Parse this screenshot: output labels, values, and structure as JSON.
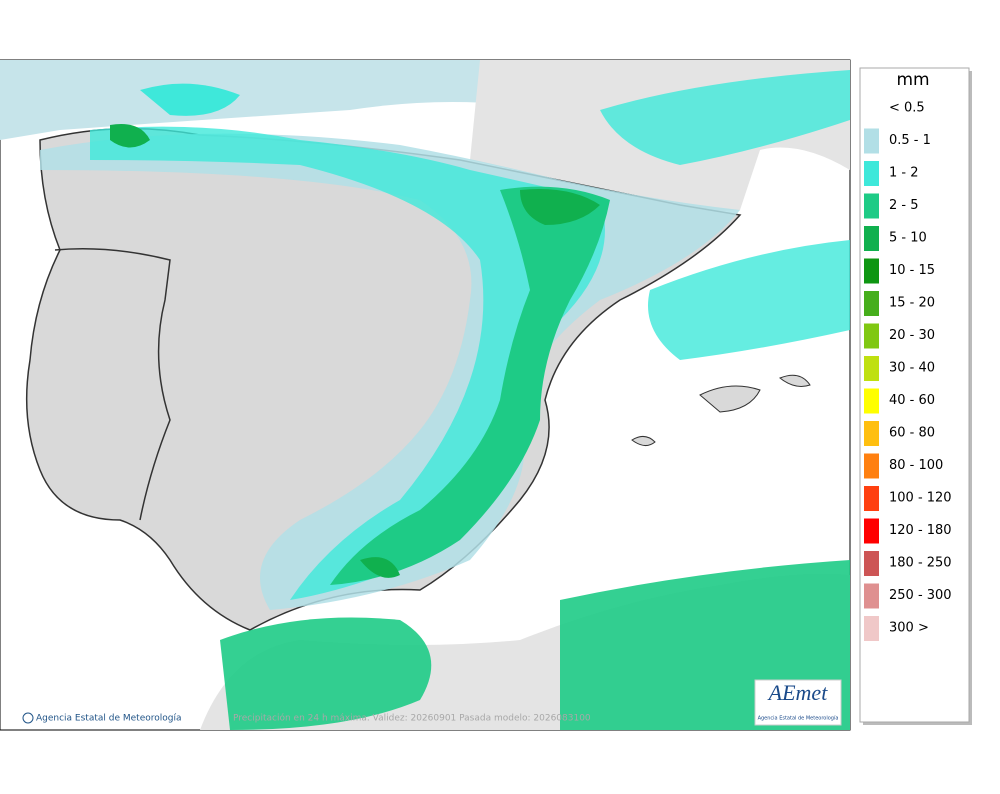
{
  "legend": {
    "title": "mm",
    "items": [
      {
        "label": "< 0.5",
        "color": "#ffffff"
      },
      {
        "label": "0.5 - 1",
        "color": "#b2dfe6"
      },
      {
        "label": "1 - 2",
        "color": "#3ee8da"
      },
      {
        "label": "2 - 5",
        "color": "#1ecb86"
      },
      {
        "label": "5 - 10",
        "color": "#10b04e"
      },
      {
        "label": "10 - 15",
        "color": "#0e9612"
      },
      {
        "label": "15 - 20",
        "color": "#46ae1c"
      },
      {
        "label": "20 - 30",
        "color": "#80c812"
      },
      {
        "label": "30 - 40",
        "color": "#bfe010"
      },
      {
        "label": "40 - 60",
        "color": "#ffff00"
      },
      {
        "label": "60 - 80",
        "color": "#ffbf10"
      },
      {
        "label": "80 - 100",
        "color": "#ff8010"
      },
      {
        "label": "100 - 120",
        "color": "#ff4010"
      },
      {
        "label": "120 - 180",
        "color": "#ff0000"
      },
      {
        "label": "180 - 250",
        "color": "#cd5555"
      },
      {
        "label": "250 - 300",
        "color": "#df9090"
      },
      {
        "label": "300 >",
        "color": "#f0c8c8"
      }
    ]
  },
  "footer": {
    "credit": "Agencia Estatal de Meteorología",
    "caption": "Precipitación en 24 h máxima. Validez: 20260901 Pasada modelo: 2026083100"
  },
  "logo": {
    "name": "AEmet",
    "subtitle": "Agencia Estatal de Meteorología"
  }
}
